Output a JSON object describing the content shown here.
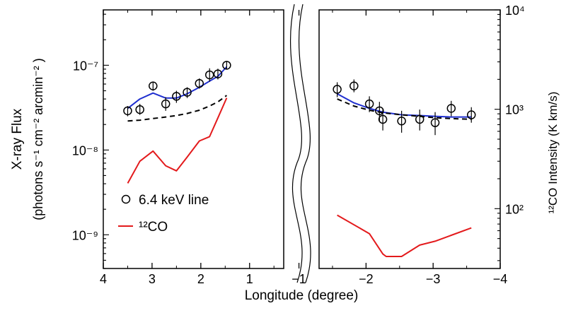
{
  "chart_data": {
    "type": "scatter",
    "xlabel": "Longitude (degree)",
    "ylabel_left_line1": "X-ray Flux",
    "ylabel_left_line2": "(photons s⁻¹ cm⁻² arcmin⁻² )",
    "ylabel_right": "¹²CO Intensity (K km/s)",
    "yscale": "log",
    "ylim_left": [
      4e-10,
      4.5e-07
    ],
    "ylim_right": [
      25,
      10000
    ],
    "panels": [
      {
        "xlim": [
          4,
          0.3
        ],
        "xticks": [
          4,
          3,
          2,
          1
        ],
        "xtick_labels": [
          "4",
          "3",
          "2",
          "1"
        ]
      },
      {
        "xlim": [
          -1.3,
          -4
        ],
        "xticks": [
          -1,
          -2,
          -3,
          -4
        ],
        "xtick_labels": [
          "−1",
          "−2",
          "−3",
          "−4"
        ]
      }
    ],
    "left_yticks": [
      {
        "value": 1e-07,
        "label": "10⁻⁷"
      },
      {
        "value": 1e-08,
        "label": "10⁻⁸"
      },
      {
        "value": 1e-09,
        "label": "10⁻⁹"
      }
    ],
    "right_yticks": [
      {
        "value": 10000,
        "label": "10⁴"
      },
      {
        "value": 1000,
        "label": "10³"
      },
      {
        "value": 100,
        "label": "10²"
      }
    ],
    "legend": {
      "position": "lower-left",
      "items": [
        {
          "label": "6.4 keV line",
          "marker": "circle",
          "color": "#000000"
        },
        {
          "label": "¹²CO",
          "marker": "line",
          "color": "#e31a1c"
        }
      ]
    },
    "series": [
      {
        "name": "6.4 keV line",
        "style": "circle-errorbar",
        "color": "#000000",
        "axis": "left",
        "points": [
          {
            "x": 3.5,
            "y": 2.9e-08,
            "lo": 2.5e-08,
            "hi": 3.3e-08,
            "panel": 0
          },
          {
            "x": 3.25,
            "y": 3e-08,
            "lo": 2.6e-08,
            "hi": 3.5e-08,
            "panel": 0
          },
          {
            "x": 2.98,
            "y": 5.7e-08,
            "lo": 5e-08,
            "hi": 6.4e-08,
            "panel": 0
          },
          {
            "x": 2.72,
            "y": 3.5e-08,
            "lo": 2.9e-08,
            "hi": 4.2e-08,
            "panel": 0
          },
          {
            "x": 2.5,
            "y": 4.3e-08,
            "lo": 3.6e-08,
            "hi": 5e-08,
            "panel": 0
          },
          {
            "x": 2.28,
            "y": 4.8e-08,
            "lo": 4.1e-08,
            "hi": 5.5e-08,
            "panel": 0
          },
          {
            "x": 2.03,
            "y": 6.1e-08,
            "lo": 5.3e-08,
            "hi": 7e-08,
            "panel": 0
          },
          {
            "x": 1.82,
            "y": 7.7e-08,
            "lo": 6.4e-08,
            "hi": 9.2e-08,
            "panel": 0
          },
          {
            "x": 1.65,
            "y": 7.9e-08,
            "lo": 6.8e-08,
            "hi": 9.1e-08,
            "panel": 0
          },
          {
            "x": 1.47,
            "y": 1e-07,
            "lo": 9e-08,
            "hi": 1.1e-07,
            "panel": 0
          },
          {
            "x": -1.57,
            "y": 5.2e-08,
            "lo": 4.2e-08,
            "hi": 6.3e-08,
            "panel": 1
          },
          {
            "x": -1.82,
            "y": 5.7e-08,
            "lo": 4.8e-08,
            "hi": 6.8e-08,
            "panel": 1
          },
          {
            "x": -2.05,
            "y": 3.5e-08,
            "lo": 2.8e-08,
            "hi": 4.3e-08,
            "panel": 1
          },
          {
            "x": -2.2,
            "y": 2.9e-08,
            "lo": 2.2e-08,
            "hi": 3.7e-08,
            "panel": 1
          },
          {
            "x": -2.25,
            "y": 2.3e-08,
            "lo": 1.7e-08,
            "hi": 3e-08,
            "panel": 1
          },
          {
            "x": -2.53,
            "y": 2.2e-08,
            "lo": 1.6e-08,
            "hi": 2.9e-08,
            "panel": 1
          },
          {
            "x": -2.8,
            "y": 2.3e-08,
            "lo": 1.7e-08,
            "hi": 3e-08,
            "panel": 1
          },
          {
            "x": -3.03,
            "y": 2.1e-08,
            "lo": 1.5e-08,
            "hi": 2.8e-08,
            "panel": 1
          },
          {
            "x": -3.27,
            "y": 3.1e-08,
            "lo": 2.5e-08,
            "hi": 3.8e-08,
            "panel": 1
          },
          {
            "x": -3.57,
            "y": 2.6e-08,
            "lo": 2.1e-08,
            "hi": 3.2e-08,
            "panel": 1
          }
        ]
      },
      {
        "name": "",
        "style": "solid",
        "color": "#1f2fd0",
        "axis": "left",
        "segments": [
          {
            "panel": 0,
            "x": [
              3.5,
              3.25,
              2.98,
              2.72,
              2.5,
              2.28,
              2.03,
              1.82,
              1.65,
              1.47
            ],
            "y": [
              3.1e-08,
              4e-08,
              4.7e-08,
              4.1e-08,
              4.1e-08,
              4.6e-08,
              5.5e-08,
              6.5e-08,
              7.4e-08,
              9.6e-08
            ]
          },
          {
            "panel": 1,
            "x": [
              -1.57,
              -1.82,
              -2.05,
              -2.25,
              -2.53,
              -2.8,
              -3.03,
              -3.27,
              -3.57
            ],
            "y": [
              4.6e-08,
              3.6e-08,
              3.1e-08,
              2.8e-08,
              2.6e-08,
              2.55e-08,
              2.5e-08,
              2.45e-08,
              2.45e-08
            ]
          }
        ]
      },
      {
        "name": "",
        "style": "dashed",
        "color": "#000000",
        "axis": "left",
        "segments": [
          {
            "panel": 0,
            "x": [
              3.5,
              3.25,
              2.98,
              2.72,
              2.5,
              2.28,
              2.03,
              1.82,
              1.65,
              1.47
            ],
            "y": [
              2.2e-08,
              2.25e-08,
              2.35e-08,
              2.45e-08,
              2.55e-08,
              2.7e-08,
              2.95e-08,
              3.3e-08,
              3.7e-08,
              4.4e-08
            ]
          },
          {
            "panel": 1,
            "x": [
              -1.57,
              -1.82,
              -2.05,
              -2.25,
              -2.53,
              -2.8,
              -3.03,
              -3.27,
              -3.57
            ],
            "y": [
              4e-08,
              3.3e-08,
              2.95e-08,
              2.75e-08,
              2.6e-08,
              2.5e-08,
              2.4e-08,
              2.35e-08,
              2.3e-08
            ]
          }
        ]
      },
      {
        "name": "¹²CO",
        "style": "solid",
        "color": "#e31a1c",
        "axis": "right",
        "segments": [
          {
            "panel": 0,
            "x": [
              3.5,
              3.25,
              2.98,
              2.72,
              2.5,
              2.28,
              2.03,
              1.82,
              1.65,
              1.47
            ],
            "y": [
              180,
              300,
              380,
              270,
              240,
              330,
              480,
              530,
              820,
              1300
            ]
          },
          {
            "panel": 1,
            "x": [
              -1.57,
              -2.05,
              -2.25,
              -2.3,
              -2.53,
              -2.8,
              -3.03,
              -3.27,
              -3.57
            ],
            "y": [
              86,
              56,
              35,
              33,
              33,
              43,
              47,
              54,
              64
            ]
          }
        ]
      }
    ]
  }
}
